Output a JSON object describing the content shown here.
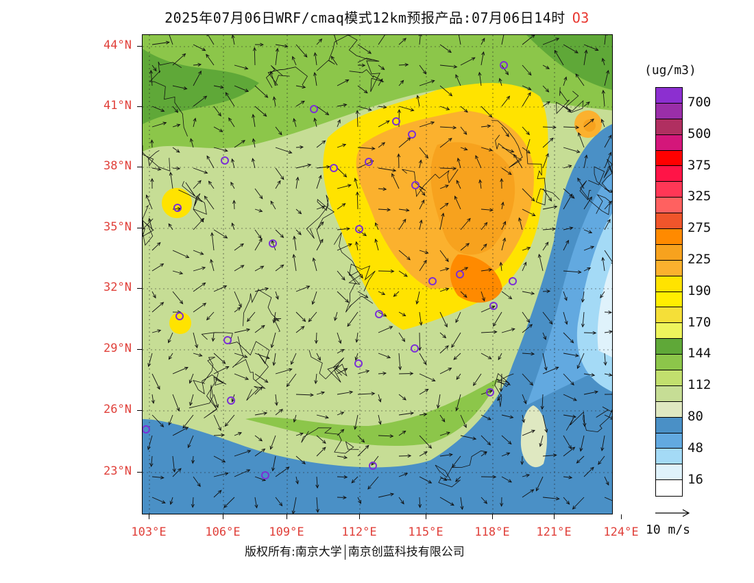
{
  "title": {
    "main": "2025年07月06日WRF/cmaq模式12km预报产品:07月06日14时",
    "pollutant": "O3"
  },
  "lat_labels": [
    "44°N",
    "41°N",
    "38°N",
    "35°N",
    "32°N",
    "29°N",
    "26°N",
    "23°N"
  ],
  "lon_labels": [
    "103°E",
    "106°E",
    "109°E",
    "112°E",
    "115°E",
    "118°E",
    "121°E",
    "124°E"
  ],
  "colorbar": {
    "unit": "(ug/m3)",
    "levels": [
      {
        "label": "700",
        "color": "#8c2fd0"
      },
      {
        "label": "",
        "color": "#9a2ea8"
      },
      {
        "label": "500",
        "color": "#b02f60"
      },
      {
        "label": "",
        "color": "#d4167a"
      },
      {
        "label": "375",
        "color": "#ff0000"
      },
      {
        "label": "",
        "color": "#ff1447"
      },
      {
        "label": "325",
        "color": "#ff3756"
      },
      {
        "label": "",
        "color": "#ff6160"
      },
      {
        "label": "275",
        "color": "#f0552b"
      },
      {
        "label": "",
        "color": "#ff8a00"
      },
      {
        "label": "225",
        "color": "#f7a21e"
      },
      {
        "label": "",
        "color": "#fbb12e"
      },
      {
        "label": "190",
        "color": "#ffe300"
      },
      {
        "label": "",
        "color": "#ffee00"
      },
      {
        "label": "170",
        "color": "#f5df38"
      },
      {
        "label": "",
        "color": "#eef45c"
      },
      {
        "label": "144",
        "color": "#5fa838"
      },
      {
        "label": "",
        "color": "#8cc64a"
      },
      {
        "label": "112",
        "color": "#c2df6e"
      },
      {
        "label": "",
        "color": "#c6dd95"
      },
      {
        "label": "80",
        "color": "#dfe8c1"
      },
      {
        "label": "",
        "color": "#4a90c6"
      },
      {
        "label": "48",
        "color": "#62a9e0"
      },
      {
        "label": "",
        "color": "#a4daf6"
      },
      {
        "label": "16",
        "color": "#dff2fb"
      },
      {
        "label": "",
        "color": "#ffffff"
      }
    ]
  },
  "wind_reference": "10 m/s",
  "footer": {
    "copyright": "版权所有:南京大学",
    "company": "南京创蓝科技有限公司"
  }
}
